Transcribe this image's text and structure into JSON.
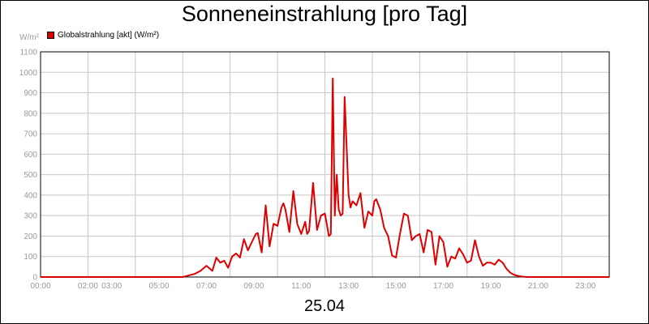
{
  "chart_data": {
    "type": "line",
    "title": "Sonneneinstrahlung [pro Tag]",
    "ylabel": "W/m²",
    "xlabel": "25.04",
    "ylim": [
      0,
      1100
    ],
    "xlim_hours": [
      0,
      24
    ],
    "grid": true,
    "legend_position": "top-left",
    "x_tick_labels": [
      "00:00",
      "02:00",
      "03:00",
      "05:00",
      "07:00",
      "09:00",
      "11:00",
      "13:00",
      "15:00",
      "17:00",
      "19:00",
      "21:00",
      "23:00"
    ],
    "y_tick_labels": [
      "0",
      "100",
      "200",
      "300",
      "400",
      "500",
      "600",
      "700",
      "800",
      "900",
      "1000",
      "1100"
    ],
    "series": [
      {
        "name": "Globalstrahlung [akt] (W/m²)",
        "color": "#dd0000",
        "x": [
          "00:00",
          "06:00",
          "06:10",
          "06:30",
          "06:45",
          "07:00",
          "07:15",
          "07:25",
          "07:35",
          "07:45",
          "07:55",
          "08:05",
          "08:15",
          "08:25",
          "08:35",
          "08:45",
          "08:55",
          "09:05",
          "09:10",
          "09:20",
          "09:30",
          "09:40",
          "09:50",
          "10:00",
          "10:10",
          "10:15",
          "10:20",
          "10:30",
          "10:40",
          "10:50",
          "11:00",
          "11:10",
          "11:15",
          "11:20",
          "11:30",
          "11:40",
          "11:50",
          "12:00",
          "12:10",
          "12:15",
          "12:20",
          "12:25",
          "12:30",
          "12:35",
          "12:40",
          "12:45",
          "12:50",
          "13:00",
          "13:05",
          "13:10",
          "13:15",
          "13:20",
          "13:30",
          "13:40",
          "13:50",
          "14:00",
          "14:05",
          "14:10",
          "14:20",
          "14:30",
          "14:40",
          "14:50",
          "15:00",
          "15:10",
          "15:20",
          "15:30",
          "15:40",
          "15:50",
          "16:00",
          "16:10",
          "16:20",
          "16:30",
          "16:40",
          "16:50",
          "17:00",
          "17:10",
          "17:20",
          "17:30",
          "17:40",
          "17:50",
          "18:00",
          "18:10",
          "18:20",
          "18:30",
          "18:40",
          "18:50",
          "19:00",
          "19:10",
          "19:20",
          "19:30",
          "19:40",
          "19:50",
          "20:00",
          "20:10",
          "20:20",
          "20:30",
          "21:00",
          "24:00"
        ],
        "y": [
          0,
          0,
          5,
          15,
          30,
          55,
          30,
          95,
          70,
          80,
          45,
          100,
          115,
          95,
          185,
          130,
          170,
          210,
          215,
          120,
          350,
          150,
          260,
          250,
          340,
          360,
          330,
          220,
          420,
          260,
          210,
          270,
          210,
          225,
          460,
          230,
          300,
          310,
          200,
          210,
          970,
          300,
          500,
          330,
          300,
          310,
          880,
          400,
          340,
          370,
          360,
          350,
          410,
          240,
          320,
          300,
          370,
          380,
          330,
          240,
          200,
          105,
          95,
          210,
          310,
          300,
          180,
          200,
          210,
          120,
          230,
          220,
          60,
          200,
          170,
          50,
          100,
          90,
          140,
          110,
          70,
          80,
          180,
          100,
          55,
          70,
          70,
          60,
          85,
          70,
          40,
          20,
          10,
          5,
          2,
          0,
          0,
          0
        ]
      }
    ]
  }
}
